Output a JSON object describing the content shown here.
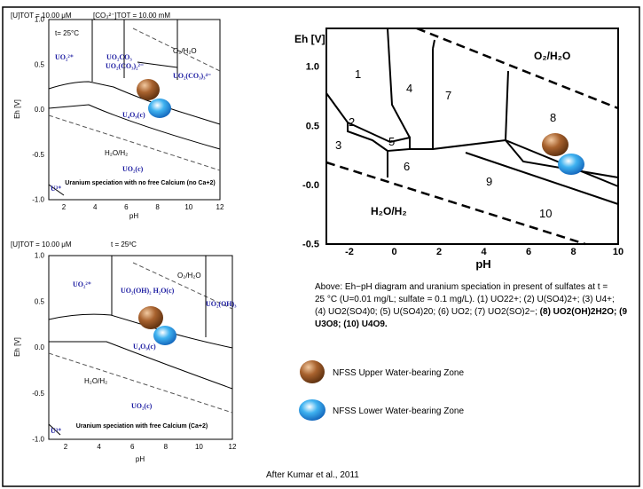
{
  "panel_top_left": {
    "header_u": "[U]TOT = 10.00 μM",
    "header_co3": "[CO₃²⁻]TOT = 10.00 mM",
    "y_label": "Eh [V]",
    "x_label": "pH",
    "yticks": [
      "1.0",
      "0.5",
      "0.0",
      "-0.5",
      "-1.0"
    ],
    "xticks": [
      "2",
      "4",
      "6",
      "8",
      "10",
      "12"
    ],
    "labels": [
      "t= 25°C",
      "UO₂²⁺",
      "UO₂CO₃",
      "UO₂(CO₃)₂²⁻",
      "O₂/H₂O",
      "UO₂(CO₃)₃⁴⁻",
      "U₄O₉(c)",
      "H₂O/H₂",
      "UO₂(c)",
      "U³⁺"
    ],
    "caption": "Uranium speciation with no free Calcium (no Ca+2)"
  },
  "panel_bottom_left": {
    "header_u": "[U]TOT = 10.00 μM",
    "header_t": "t = 25ºC",
    "y_label": "Eh [V]",
    "x_label": "pH",
    "yticks": [
      "1.0",
      "0.5",
      "0.0",
      "-0.5",
      "-1.0"
    ],
    "xticks": [
      "2",
      "4",
      "6",
      "8",
      "10",
      "12"
    ],
    "labels": [
      "UO₂²⁺",
      "UO₂(OH)₂ H₂O(c)",
      "O₂/H₂O",
      "UO₂(OH)₃",
      "U₄O₉(c)",
      "H₂O/H₂",
      "UO₂(c)",
      "U³⁺"
    ],
    "caption": "Uranium speciation with free Calcium (Ca+2)"
  },
  "panel_right": {
    "y_label": "Eh [V]",
    "x_label": "pH",
    "yticks": [
      "1.0",
      "0.5",
      "-0.0",
      "-0.5"
    ],
    "xticks": [
      "-2",
      "0",
      "2",
      "4",
      "6",
      "8",
      "10"
    ],
    "regions": [
      "1",
      "2",
      "3",
      "4",
      "5",
      "6",
      "7",
      "8",
      "9",
      "10"
    ],
    "o2_label": "O₂/H₂O",
    "h2_label": "H₂O/H₂"
  },
  "caption": {
    "lines": [
      "Above:  Eh−pH diagram and uranium speciation in present of sulfates at t =",
      "25 °C (U=0.01 mg/L; sulfate = 0.1 mg/L).  (1) UO22+; (2) U(SO4)2+; (3) U4+;",
      "(4) UO2(SO4)0; (5) U(SO4)20; (6) UO2; (7) UO2(SO)2−; "
    ],
    "bold_lines": [
      "(8) UO2(OH)2H2O; (9",
      "U3O8; (10) U4O9."
    ]
  },
  "legend": [
    "NFSS Upper Water-bearing Zone",
    "NFSS Lower Water-bearing Zone"
  ],
  "source": "After Kumar et al., 2011"
}
